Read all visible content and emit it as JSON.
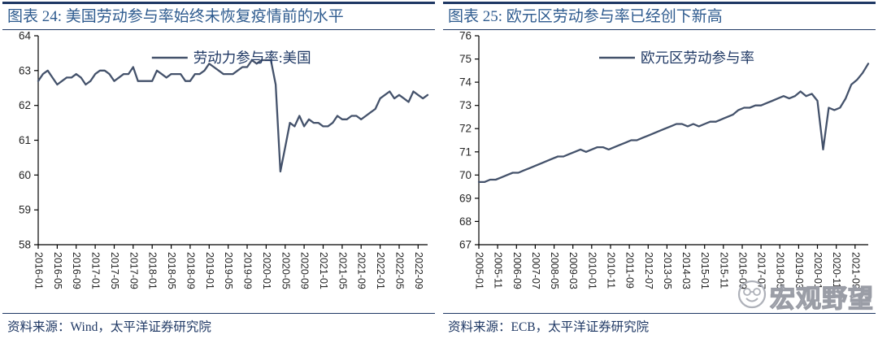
{
  "colors": {
    "line": "#44526B",
    "title_text": "#2E5B8F",
    "rule_navy": "#1F3864",
    "tick_text": "#262626",
    "legend_text": "#1F3864",
    "source_text": "#1F3864",
    "watermark": "#9a9da6"
  },
  "watermark": {
    "text": "宏观野望",
    "icon": "wechat-face-logo"
  },
  "figures": [
    {
      "title": "图表 24: 美国劳动参与率始终未恢复疫情前的水平",
      "source": "资料来源：Wind，太平洋证券研究院",
      "chart_data": {
        "type": "line",
        "title": "美国劳动参与率始终未恢复疫情前的水平",
        "legend": "劳动力参与率:美国",
        "xlabel": "",
        "ylabel": "",
        "ylim": [
          58,
          64
        ],
        "ytick_step": 1,
        "x_start": "2016-01",
        "month_step": 1,
        "label_month_step": 4,
        "grid": false,
        "legend_position": "top-center",
        "x_labels": [
          "2016-01",
          "2016-05",
          "2016-09",
          "2017-01",
          "2017-05",
          "2017-09",
          "2018-01",
          "2018-05",
          "2018-09",
          "2019-01",
          "2019-05",
          "2019-09",
          "2020-01",
          "2020-05",
          "2020-09",
          "2021-01",
          "2021-05",
          "2021-09",
          "2022-01",
          "2022-05",
          "2022-09"
        ],
        "values": [
          62.7,
          62.9,
          63.0,
          62.8,
          62.6,
          62.7,
          62.8,
          62.8,
          62.9,
          62.8,
          62.6,
          62.7,
          62.9,
          63.0,
          63.0,
          62.9,
          62.7,
          62.8,
          62.9,
          62.9,
          63.1,
          62.7,
          62.7,
          62.7,
          62.7,
          63.0,
          62.9,
          62.8,
          62.9,
          62.9,
          62.9,
          62.7,
          62.7,
          62.9,
          62.9,
          63.0,
          63.2,
          63.1,
          63.0,
          62.9,
          62.9,
          62.9,
          63.0,
          63.1,
          63.1,
          63.3,
          63.2,
          63.3,
          63.3,
          63.3,
          62.6,
          60.1,
          60.8,
          61.5,
          61.4,
          61.7,
          61.4,
          61.6,
          61.5,
          61.5,
          61.4,
          61.4,
          61.5,
          61.7,
          61.6,
          61.6,
          61.7,
          61.7,
          61.6,
          61.7,
          61.8,
          61.9,
          62.2,
          62.3,
          62.4,
          62.2,
          62.3,
          62.2,
          62.1,
          62.4,
          62.3,
          62.2,
          62.3
        ]
      }
    },
    {
      "title": "图表 25: 欧元区劳动参与率已经创下新高",
      "source": "资料来源：ECB，太平洋证券研究院",
      "chart_data": {
        "type": "line",
        "title": "欧元区劳动参与率已经创下新高",
        "legend": "欧元区劳动参与率",
        "xlabel": "",
        "ylabel": "",
        "ylim": [
          67,
          76
        ],
        "ytick_step": 1,
        "x_start": "2005-01",
        "month_step": 3,
        "label_month_step": 10,
        "grid": false,
        "legend_position": "top-center",
        "x_labels": [
          "2005-01",
          "2005-11",
          "2006-09",
          "2007-07",
          "2008-05",
          "2009-03",
          "2010-01",
          "2010-11",
          "2011-09",
          "2012-07",
          "2013-05",
          "2014-03",
          "2015-01",
          "2015-11",
          "2016-09",
          "2017-07",
          "2018-05",
          "2019-03",
          "2020-01",
          "2020-11",
          "2021-09"
        ],
        "values": [
          69.7,
          69.7,
          69.8,
          69.8,
          69.9,
          70.0,
          70.1,
          70.1,
          70.2,
          70.3,
          70.4,
          70.5,
          70.6,
          70.7,
          70.8,
          70.8,
          70.9,
          71.0,
          71.1,
          71.0,
          71.1,
          71.2,
          71.2,
          71.1,
          71.2,
          71.3,
          71.4,
          71.5,
          71.5,
          71.6,
          71.7,
          71.8,
          71.9,
          72.0,
          72.1,
          72.2,
          72.2,
          72.1,
          72.2,
          72.1,
          72.2,
          72.3,
          72.3,
          72.4,
          72.5,
          72.6,
          72.8,
          72.9,
          72.9,
          73.0,
          73.0,
          73.1,
          73.2,
          73.3,
          73.4,
          73.3,
          73.4,
          73.6,
          73.4,
          73.5,
          73.2,
          71.1,
          72.9,
          72.8,
          72.9,
          73.3,
          73.9,
          74.1,
          74.4,
          74.8
        ]
      }
    }
  ]
}
